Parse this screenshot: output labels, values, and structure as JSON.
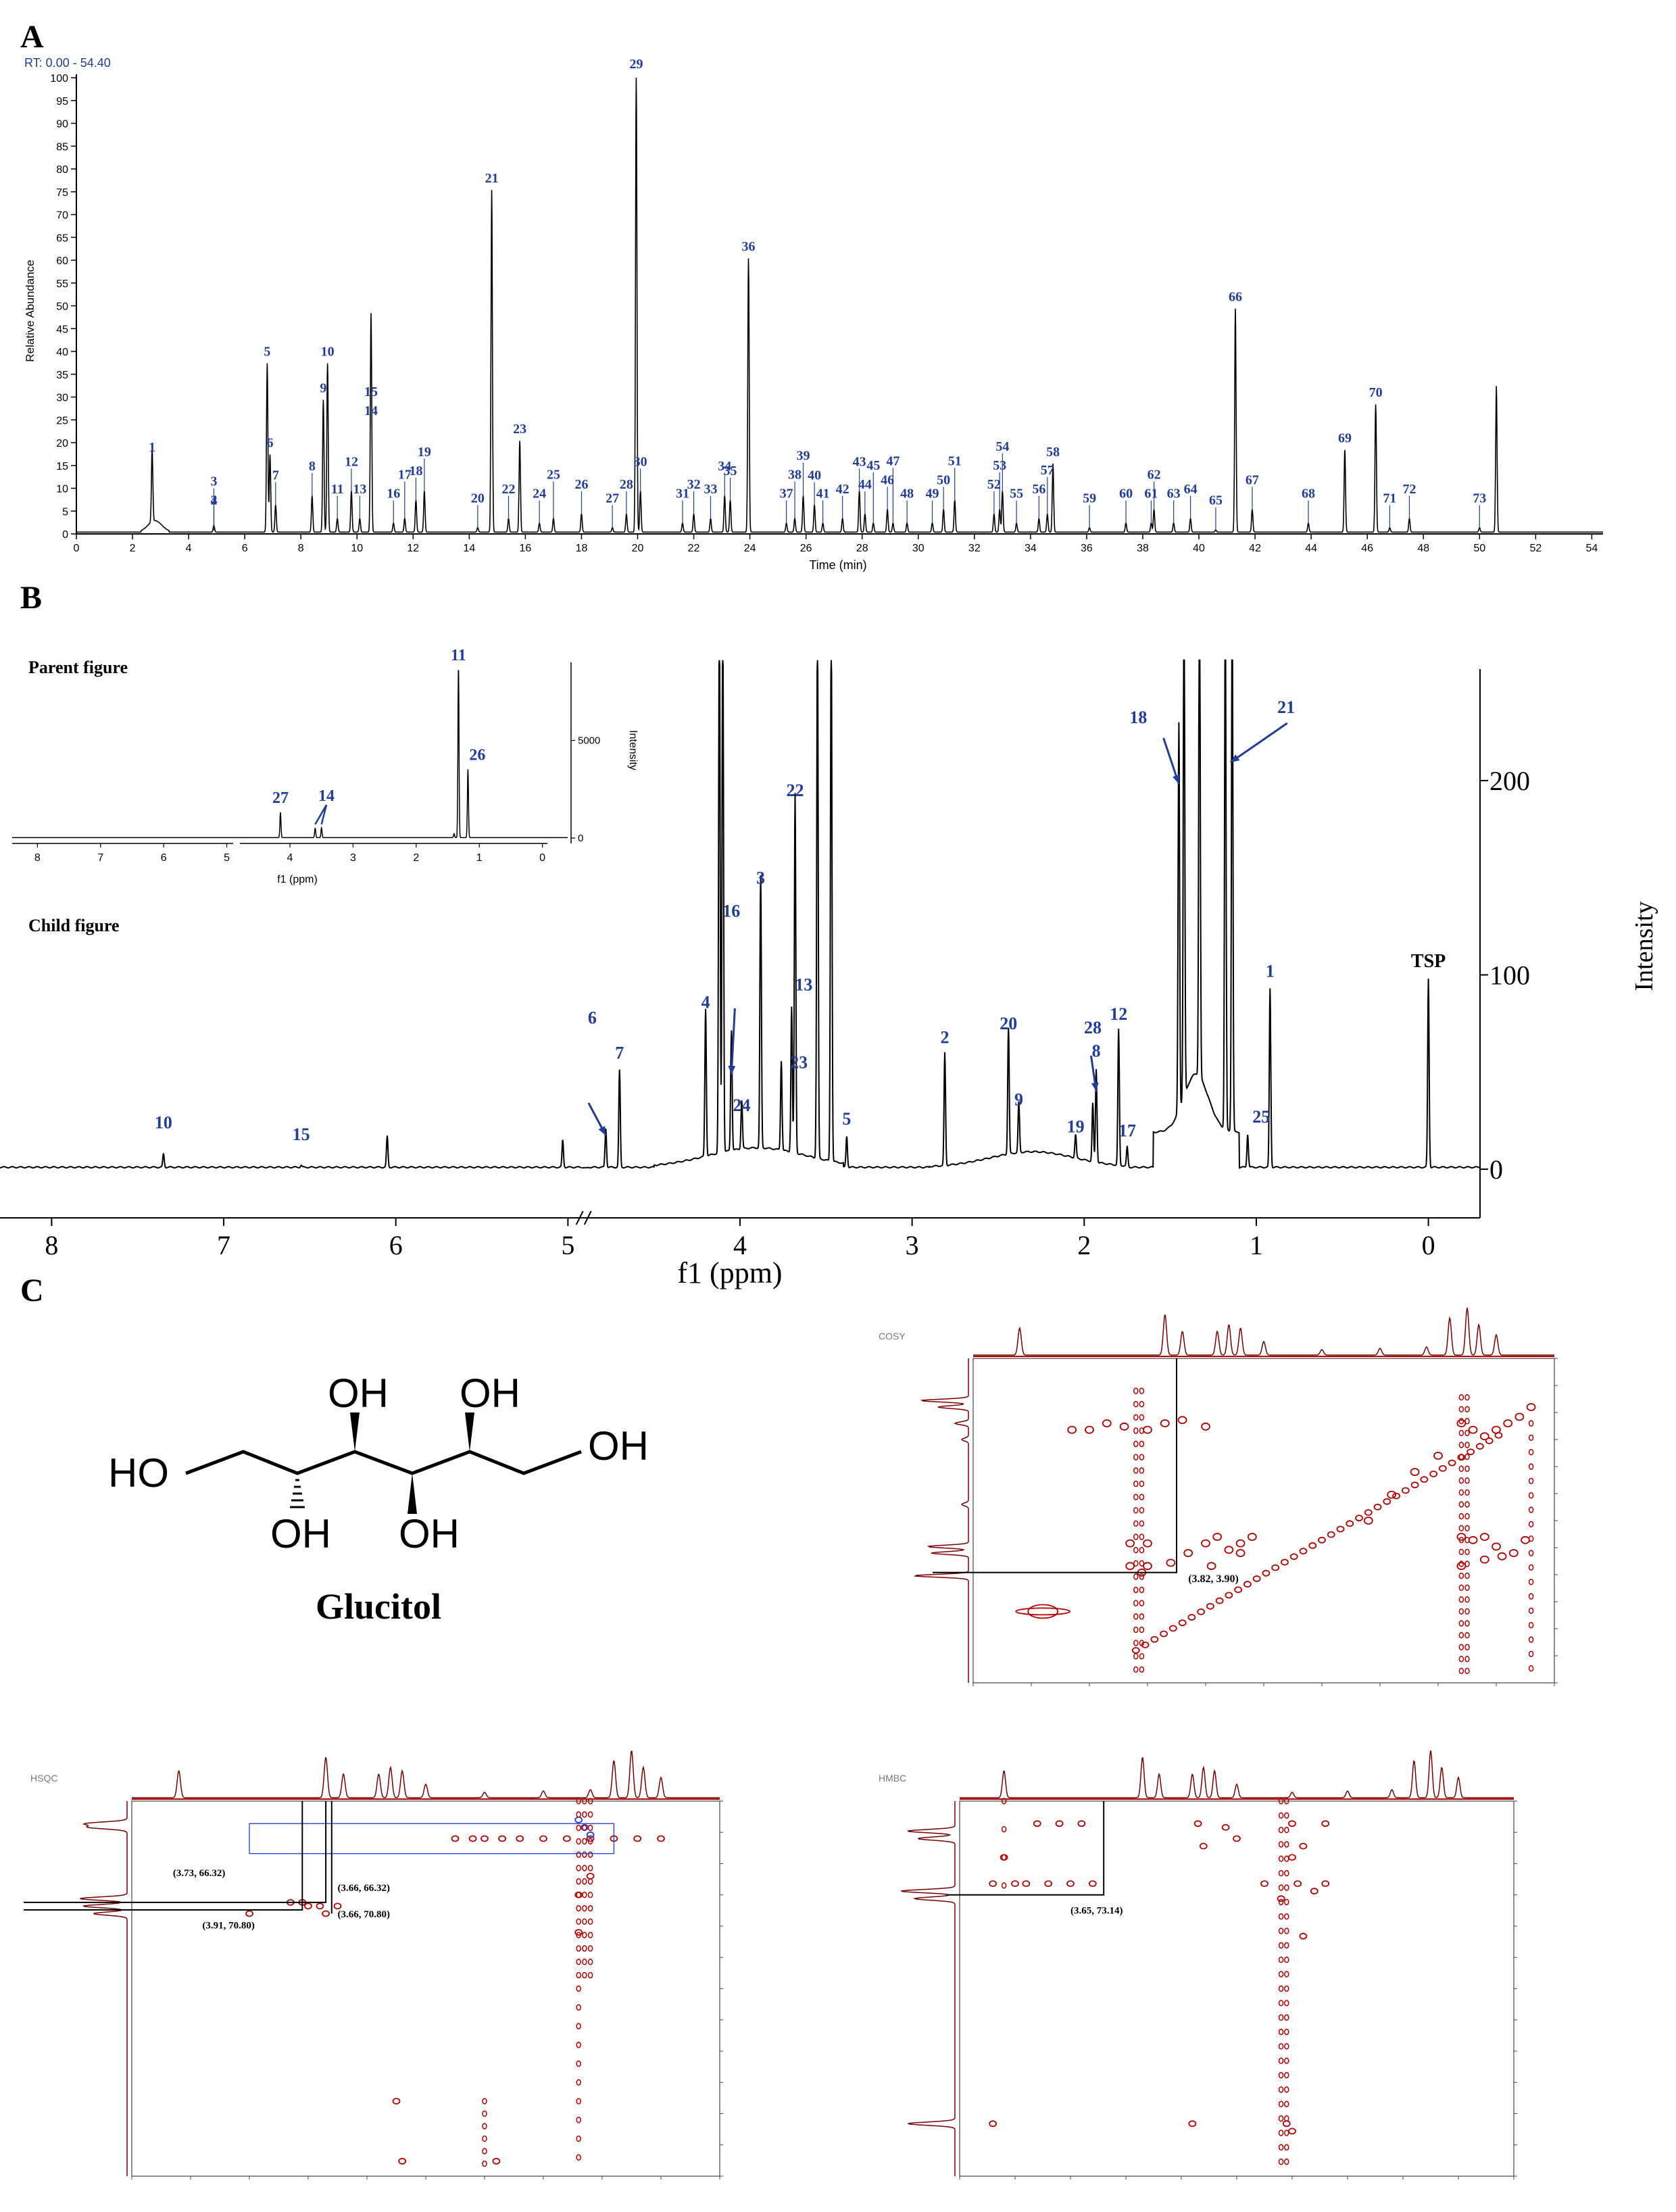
{
  "panel_labels": [
    "A",
    "B",
    "C"
  ],
  "panelA": {
    "rt_label": "RT: 0.00 - 54.40",
    "ylabel": "Relative Abundance",
    "xlabel": "Time (min)",
    "yticks": [
      0,
      5,
      10,
      15,
      20,
      25,
      30,
      35,
      40,
      45,
      50,
      55,
      60,
      65,
      70,
      75,
      80,
      85,
      90,
      95,
      100
    ],
    "xticks": [
      0,
      2,
      4,
      6,
      8,
      10,
      12,
      14,
      16,
      18,
      20,
      22,
      24,
      26,
      28,
      30,
      32,
      34,
      36,
      38,
      40,
      42,
      44,
      46,
      48,
      50,
      52,
      54
    ]
  },
  "panelB": {
    "parent_title": "Parent figure",
    "child_title": "Child figure",
    "inset_xlabel": "f1 (ppm)",
    "inset_ylabel": "Intensity",
    "inset_xticks": [
      "8",
      "7",
      "6",
      "5",
      "4",
      "3",
      "2",
      "1",
      "0"
    ],
    "inset_yticks": [
      "0",
      "5000"
    ],
    "xticks": [
      "8",
      "7",
      "6",
      "5",
      "4",
      "3",
      "2",
      "1",
      "0"
    ],
    "xlabel": "f1 (ppm)",
    "ylabel": "Intensity",
    "yticks": [
      "0",
      "100",
      "200"
    ],
    "tsp_label": "TSP"
  },
  "panelC": {
    "compound_name": "Glucitol",
    "oh_label": "OH",
    "ho_label": "HO",
    "cosy": {
      "title": "COSY",
      "annotation": "(3.82, 3.90)"
    },
    "hsqc": {
      "title": "HSQC",
      "annotations": [
        "(3.73, 66.32)",
        "(3.66, 66.32)",
        "(3.91, 70.80)",
        "(3.66, 70.80)"
      ]
    },
    "hmbc": {
      "title": "HMBC",
      "annotation": "(3.65, 73.14)"
    }
  },
  "chart_data": [
    {
      "type": "line",
      "xlabel": "Time (min)",
      "ylabel": "Relative Abundance",
      "xlim": [
        0,
        54.4
      ],
      "ylim": [
        0,
        100
      ],
      "peaks": [
        {
          "id": "1",
          "x": 2.7,
          "y": 16
        },
        {
          "id": "2",
          "x": 4.9,
          "y": 0.5
        },
        {
          "id": "3",
          "x": 4.9,
          "y": 0.5
        },
        {
          "id": "4",
          "x": 4.9,
          "y": 0.5
        },
        {
          "id": "5",
          "x": 6.8,
          "y": 37
        },
        {
          "id": "6",
          "x": 6.9,
          "y": 17
        },
        {
          "id": "7",
          "x": 7.1,
          "y": 6
        },
        {
          "id": "8",
          "x": 8.4,
          "y": 8
        },
        {
          "id": "9",
          "x": 8.8,
          "y": 29
        },
        {
          "id": "10",
          "x": 8.95,
          "y": 37
        },
        {
          "id": "11",
          "x": 9.3,
          "y": 3
        },
        {
          "id": "12",
          "x": 9.8,
          "y": 9
        },
        {
          "id": "13",
          "x": 10.1,
          "y": 3
        },
        {
          "id": "14",
          "x": 10.5,
          "y": 24
        },
        {
          "id": "15",
          "x": 10.5,
          "y": 24
        },
        {
          "id": "16",
          "x": 11.3,
          "y": 2
        },
        {
          "id": "17",
          "x": 11.7,
          "y": 3
        },
        {
          "id": "18",
          "x": 12.1,
          "y": 7
        },
        {
          "id": "19",
          "x": 12.4,
          "y": 9
        },
        {
          "id": "20",
          "x": 14.3,
          "y": 1
        },
        {
          "id": "21",
          "x": 14.8,
          "y": 75
        },
        {
          "id": "22",
          "x": 15.4,
          "y": 3
        },
        {
          "id": "23",
          "x": 15.8,
          "y": 20
        },
        {
          "id": "24",
          "x": 16.5,
          "y": 2
        },
        {
          "id": "25",
          "x": 17.0,
          "y": 3
        },
        {
          "id": "26",
          "x": 18.0,
          "y": 4
        },
        {
          "id": "27",
          "x": 19.1,
          "y": 1
        },
        {
          "id": "28",
          "x": 19.6,
          "y": 4
        },
        {
          "id": "29",
          "x": 19.95,
          "y": 100
        },
        {
          "id": "30",
          "x": 20.1,
          "y": 9
        },
        {
          "id": "31",
          "x": 21.6,
          "y": 2
        },
        {
          "id": "32",
          "x": 22.0,
          "y": 4
        },
        {
          "id": "33",
          "x": 22.6,
          "y": 3
        },
        {
          "id": "34",
          "x": 23.1,
          "y": 8
        },
        {
          "id": "35",
          "x": 23.3,
          "y": 7
        },
        {
          "id": "36",
          "x": 23.95,
          "y": 60
        },
        {
          "id": "37",
          "x": 25.3,
          "y": 2
        },
        {
          "id": "38",
          "x": 25.6,
          "y": 3
        },
        {
          "id": "39",
          "x": 25.9,
          "y": 8
        },
        {
          "id": "40",
          "x": 26.3,
          "y": 6
        },
        {
          "id": "41",
          "x": 26.6,
          "y": 2
        },
        {
          "id": "42",
          "x": 27.3,
          "y": 3
        },
        {
          "id": "43",
          "x": 27.9,
          "y": 9
        },
        {
          "id": "44",
          "x": 28.1,
          "y": 4
        },
        {
          "id": "45",
          "x": 28.4,
          "y": 2
        },
        {
          "id": "46",
          "x": 28.9,
          "y": 5
        },
        {
          "id": "47",
          "x": 29.1,
          "y": 2
        },
        {
          "id": "48",
          "x": 29.6,
          "y": 2
        },
        {
          "id": "49",
          "x": 30.5,
          "y": 2
        },
        {
          "id": "50",
          "x": 30.9,
          "y": 5
        },
        {
          "id": "51",
          "x": 31.3,
          "y": 7
        },
        {
          "id": "52",
          "x": 32.7,
          "y": 4
        },
        {
          "id": "53",
          "x": 32.9,
          "y": 5
        },
        {
          "id": "54",
          "x": 33.0,
          "y": 9
        },
        {
          "id": "55",
          "x": 33.5,
          "y": 2
        },
        {
          "id": "56",
          "x": 34.3,
          "y": 3
        },
        {
          "id": "57",
          "x": 34.6,
          "y": 4
        },
        {
          "id": "58",
          "x": 34.8,
          "y": 15
        },
        {
          "id": "59",
          "x": 36.1,
          "y": 1
        },
        {
          "id": "60",
          "x": 37.4,
          "y": 2
        },
        {
          "id": "61",
          "x": 38.3,
          "y": 2
        },
        {
          "id": "62",
          "x": 38.4,
          "y": 5
        },
        {
          "id": "63",
          "x": 39.1,
          "y": 2
        },
        {
          "id": "64",
          "x": 39.7,
          "y": 3
        },
        {
          "id": "65",
          "x": 40.6,
          "y": 0.5
        },
        {
          "id": "66",
          "x": 41.3,
          "y": 49
        },
        {
          "id": "67",
          "x": 41.9,
          "y": 5
        },
        {
          "id": "68",
          "x": 43.9,
          "y": 2
        },
        {
          "id": "69",
          "x": 45.2,
          "y": 18
        },
        {
          "id": "70",
          "x": 46.3,
          "y": 28
        },
        {
          "id": "71",
          "x": 46.8,
          "y": 1
        },
        {
          "id": "72",
          "x": 47.5,
          "y": 3
        },
        {
          "id": "73",
          "x": 50.0,
          "y": 1
        },
        {
          "id": "",
          "x": 50.6,
          "y": 32
        }
      ]
    },
    {
      "type": "line",
      "xlabel": "f1 (ppm)",
      "ylabel": "Intensity",
      "xlim": [
        8.3,
        -0.3
      ],
      "ylim": [
        -10,
        260
      ],
      "peaks": [
        {
          "id": "10",
          "x": 7.35,
          "y": 7
        },
        {
          "id": "15",
          "x": 6.55,
          "y": 1
        },
        {
          "id": "",
          "x": 6.05,
          "y": 16
        },
        {
          "id": "",
          "x": 5.03,
          "y": 14
        },
        {
          "id": "6",
          "x": 4.78,
          "y": 20
        },
        {
          "id": "7",
          "x": 4.7,
          "y": 50
        },
        {
          "id": "",
          "x": 4.12,
          "y": 280
        },
        {
          "id": "",
          "x": 4.1,
          "y": 280
        },
        {
          "id": "4",
          "x": 4.2,
          "y": 76
        },
        {
          "id": "16",
          "x": 4.05,
          "y": 62
        },
        {
          "id": "24",
          "x": 3.99,
          "y": 25
        },
        {
          "id": "3",
          "x": 3.88,
          "y": 140
        },
        {
          "id": "23",
          "x": 3.76,
          "y": 46
        },
        {
          "id": "13",
          "x": 3.7,
          "y": 75
        },
        {
          "id": "22",
          "x": 3.68,
          "y": 185
        },
        {
          "id": "",
          "x": 3.55,
          "y": 280
        },
        {
          "id": "",
          "x": 3.47,
          "y": 280
        },
        {
          "id": "5",
          "x": 3.38,
          "y": 16
        },
        {
          "id": "2",
          "x": 2.81,
          "y": 58
        },
        {
          "id": "20",
          "x": 2.44,
          "y": 65
        },
        {
          "id": "9",
          "x": 2.38,
          "y": 26
        },
        {
          "id": "19",
          "x": 2.05,
          "y": 12
        },
        {
          "id": "8",
          "x": 1.93,
          "y": 48
        },
        {
          "id": "28",
          "x": 1.95,
          "y": 30
        },
        {
          "id": "12",
          "x": 1.8,
          "y": 70
        },
        {
          "id": "17",
          "x": 1.75,
          "y": 10
        },
        {
          "id": "18",
          "x": 1.45,
          "y": 200
        },
        {
          "id": "",
          "x": 1.42,
          "y": 280
        },
        {
          "id": "",
          "x": 1.33,
          "y": 280
        },
        {
          "id": "21",
          "x": 1.18,
          "y": 280
        },
        {
          "id": "",
          "x": 1.14,
          "y": 280
        },
        {
          "id": "25",
          "x": 1.05,
          "y": 17
        },
        {
          "id": "1",
          "x": 0.92,
          "y": 92
        },
        {
          "id": "TSP",
          "x": 0.0,
          "y": 97
        }
      ]
    },
    {
      "type": "line",
      "title": "Parent figure",
      "xlabel": "f1 (ppm)",
      "ylabel": "Intensity",
      "xlim": [
        8.4,
        -0.4
      ],
      "ylim": [
        0,
        9000
      ],
      "peaks": [
        {
          "id": "27",
          "x": 4.15,
          "y": 1300
        },
        {
          "id": "14",
          "x": 3.6,
          "y": 500
        },
        {
          "id": "14",
          "x": 3.5,
          "y": 500
        },
        {
          "id": "11",
          "x": 1.33,
          "y": 8800
        },
        {
          "id": "26",
          "x": 1.18,
          "y": 3500
        },
        {
          "id": "",
          "x": 1.4,
          "y": 200
        }
      ]
    }
  ]
}
